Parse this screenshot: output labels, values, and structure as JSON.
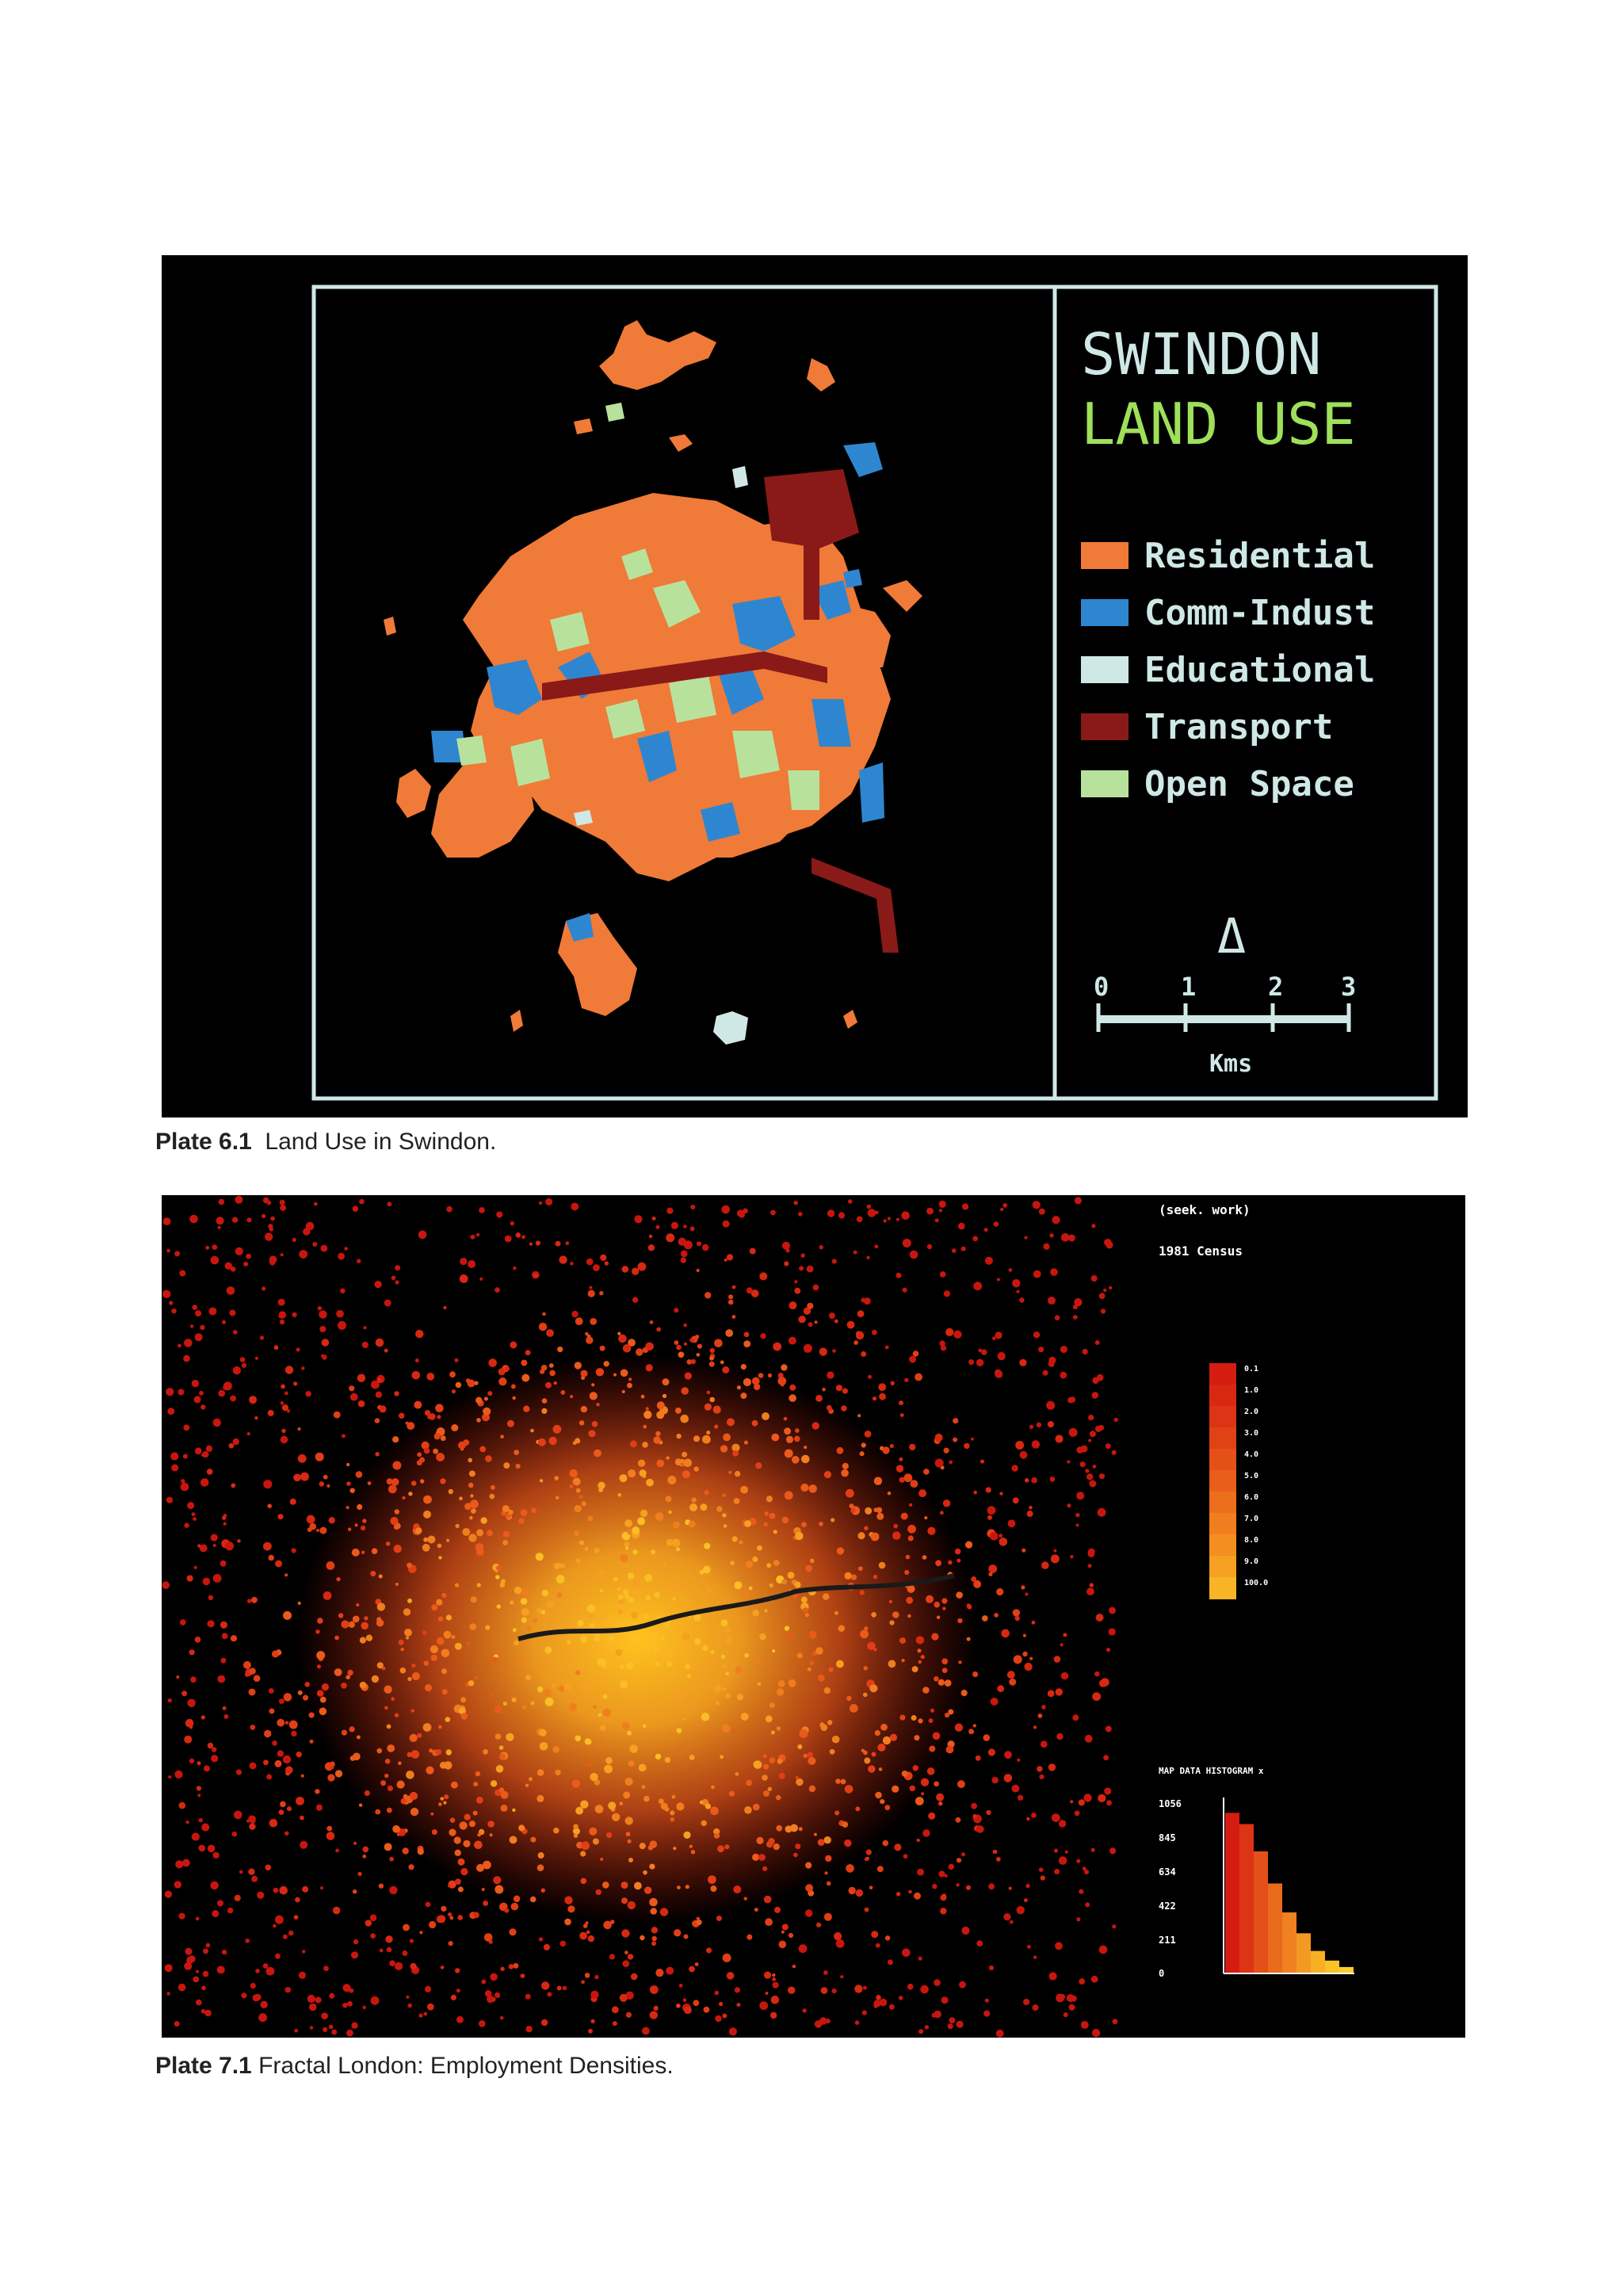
{
  "plate1": {
    "title_line1": "SWINDON",
    "title_line2": "LAND USE",
    "legend": [
      {
        "label": "Residential",
        "color": "#f07a38"
      },
      {
        "label": "Comm-Indust",
        "color": "#2e86d0"
      },
      {
        "label": "Educational",
        "color": "#cfe8e6"
      },
      {
        "label": "Transport",
        "color": "#8a1a18"
      },
      {
        "label": "Open Space",
        "color": "#b8e29c"
      }
    ],
    "north_arrow": "Δ",
    "scale_ticks": [
      "0",
      "1",
      "2",
      "3"
    ],
    "scale_unit": "Kms",
    "caption_label": "Plate 6.1",
    "caption_text": "Land Use in Swindon."
  },
  "plate2": {
    "title_line1": "(seek. work)",
    "title_line2": "1981 Census",
    "legend_values": [
      "0.1",
      "1.0",
      "2.0",
      "3.0",
      "4.0",
      "5.0",
      "6.0",
      "7.0",
      "8.0",
      "9.0",
      "100.0"
    ],
    "legend_colors": [
      "#d41c10",
      "#d82812",
      "#dc3414",
      "#e04216",
      "#e45018",
      "#e85e1a",
      "#ec6e1c",
      "#f07e1e",
      "#f48e20",
      "#f6a022",
      "#f8b424"
    ],
    "histogram_title": "MAP DATA HISTOGRAM x",
    "histogram_y_ticks": [
      "1056",
      "845",
      "634",
      "422",
      "211",
      "0"
    ],
    "histogram_values": [
      1000,
      930,
      760,
      560,
      380,
      250,
      140,
      80,
      40
    ],
    "histogram_colors": [
      "#d41c10",
      "#dc3414",
      "#e45018",
      "#ea6a1c",
      "#f08020",
      "#f49a22",
      "#f7b024",
      "#f9c226",
      "#fbd028"
    ],
    "caption_label": "Plate 7.1",
    "caption_text": "Fractal London: Employment Densities."
  }
}
